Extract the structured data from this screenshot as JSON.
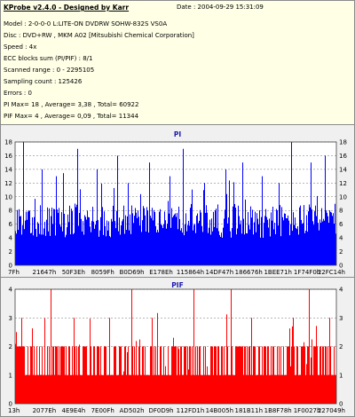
{
  "header": {
    "title": "KProbe v2.4.0 - Designed by Karr",
    "date": "Date : 2004-09-29 15:31:09"
  },
  "info": [
    "Model : 2-0-0-0 L:LITE-ON DVDRW SOHW-832S  VS0A",
    "Disc : DVD+RW , MKM A02 [Mitsubishi Chemical Corporation]",
    "Speed : 4x",
    "ECC blocks sum (PI/PIF) : 8/1",
    "Scanned range : 0 - 2295105",
    "Sampling count : 125426",
    "Errors : 0",
    "PI Max= 18 ,  Average= 3,38 ,  Total= 60922",
    "PIF Max= 4 ,  Average= 0,09 ,  Total= 11344"
  ],
  "chart_data": [
    {
      "type": "bar",
      "title": "PI",
      "color": "#0000ff",
      "ylim": [
        0,
        18
      ],
      "yticks": [
        0,
        2,
        4,
        6,
        8,
        10,
        12,
        14,
        16,
        18
      ],
      "xticks": [
        "7Fh",
        "21647h",
        "50F3Eh",
        "8059Fh",
        "B0D69h",
        "E178Eh",
        "115864h",
        "14DF47h",
        "186676h",
        "1BEE71h",
        "1F74F0h",
        "22FC14h"
      ],
      "baseline_range": [
        4,
        9
      ],
      "spikes": [
        [
          9,
          18
        ],
        [
          30,
          14
        ],
        [
          46,
          13
        ],
        [
          70,
          17
        ],
        [
          92,
          14
        ],
        [
          115,
          16
        ],
        [
          127,
          12
        ],
        [
          151,
          15
        ],
        [
          174,
          13
        ],
        [
          189,
          17
        ],
        [
          213,
          12
        ],
        [
          237,
          14
        ],
        [
          256,
          15
        ],
        [
          278,
          13
        ],
        [
          297,
          12
        ],
        [
          311,
          18
        ],
        [
          333,
          15
        ],
        [
          349,
          16
        ]
      ]
    },
    {
      "type": "bar",
      "title": "PIF",
      "color": "#ff0000",
      "ylim": [
        0,
        4
      ],
      "yticks": [
        0,
        1,
        2,
        3,
        4
      ],
      "xticks": [
        "13h",
        "2077Eh",
        "4E9E4h",
        "7E00Fh",
        "AD502h",
        "DF0D9h",
        "112FD1h",
        "14B005h",
        "181B11h",
        "1B8F78h",
        "1F0027h",
        "227049h"
      ],
      "baseline_range": [
        1,
        2
      ],
      "spikes": [
        [
          7,
          3
        ],
        [
          40,
          4
        ],
        [
          66,
          3
        ],
        [
          106,
          3
        ],
        [
          131,
          4
        ],
        [
          154,
          3
        ],
        [
          201,
          4
        ],
        [
          243,
          4
        ],
        [
          266,
          3
        ],
        [
          313,
          3
        ],
        [
          331,
          4
        ],
        [
          354,
          3
        ]
      ]
    }
  ]
}
